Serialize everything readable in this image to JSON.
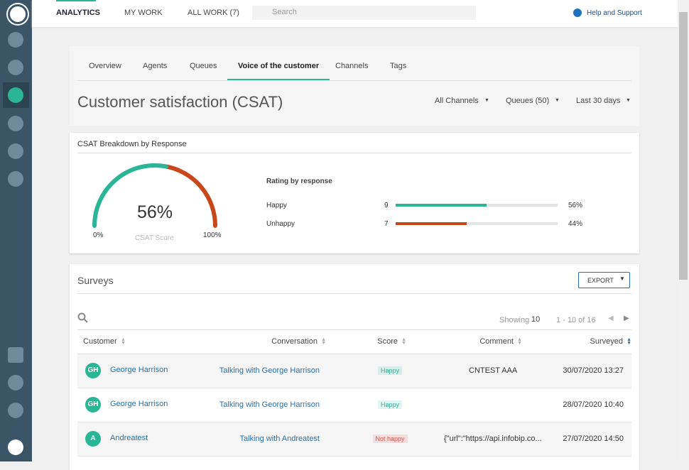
{
  "nav": {
    "tabs": [
      "ANALYTICS",
      "MY WORK",
      "ALL WORK (7)"
    ],
    "active": 0,
    "search_placeholder": "Search",
    "help": "Help and Support"
  },
  "subnav": {
    "tabs": [
      "Overview",
      "Agents",
      "Queues",
      "Voice of the customer",
      "Channels",
      "Tags"
    ],
    "active": 3
  },
  "header": {
    "title": "Customer satisfaction (CSAT)",
    "filters": [
      "All Channels",
      "Queues (50)",
      "Last 30 days"
    ]
  },
  "csat": {
    "title": "CSAT Breakdown by Response",
    "score": {
      "value": 56,
      "label": "56%"
    },
    "score_caption": "CSAT Score",
    "gauge_min": "0%",
    "gauge_max": "100%",
    "gauge_color": "#2bb597",
    "gauge_rest_color": "#c8481c",
    "rating_title": "Rating by response",
    "responses": [
      {
        "name": "Happy",
        "count": 9,
        "percent": 56,
        "percent_label": "56%",
        "color": "#2bb597"
      },
      {
        "name": "Unhappy",
        "count": 7,
        "percent": 44,
        "percent_label": "44%",
        "color": "#c8481c"
      }
    ]
  },
  "surveys": {
    "title": "Surveys",
    "export": "EXPORT",
    "showing": "Showing",
    "page_size": "10",
    "range": "1 - 10 of 16",
    "columns": [
      "Customer",
      "Conversation",
      "Score",
      "Comment",
      "Surveyed"
    ],
    "rows": [
      {
        "initials": "GH",
        "customer": "George Harrison",
        "conversation": "Talking with George Harrison",
        "score": "Happy",
        "score_color": "#2bb597",
        "comment": "CNTEST AAA",
        "surveyed": "30/07/2020 13:27"
      },
      {
        "initials": "GH",
        "customer": "George Harrison",
        "conversation": "Talking with George Harrison",
        "score": "Happy",
        "score_color": "#2bb597",
        "surveyed": "28/07/2020 10:40"
      },
      {
        "initials": "A",
        "customer": "Andreatest",
        "conversation": "Talking with Andreatest",
        "score": "Not happy",
        "score_color": "#d9534f",
        "comment": "{\"url\":\"https://api.infobip.co...",
        "surveyed": "27/07/2020 14:50"
      }
    ]
  }
}
